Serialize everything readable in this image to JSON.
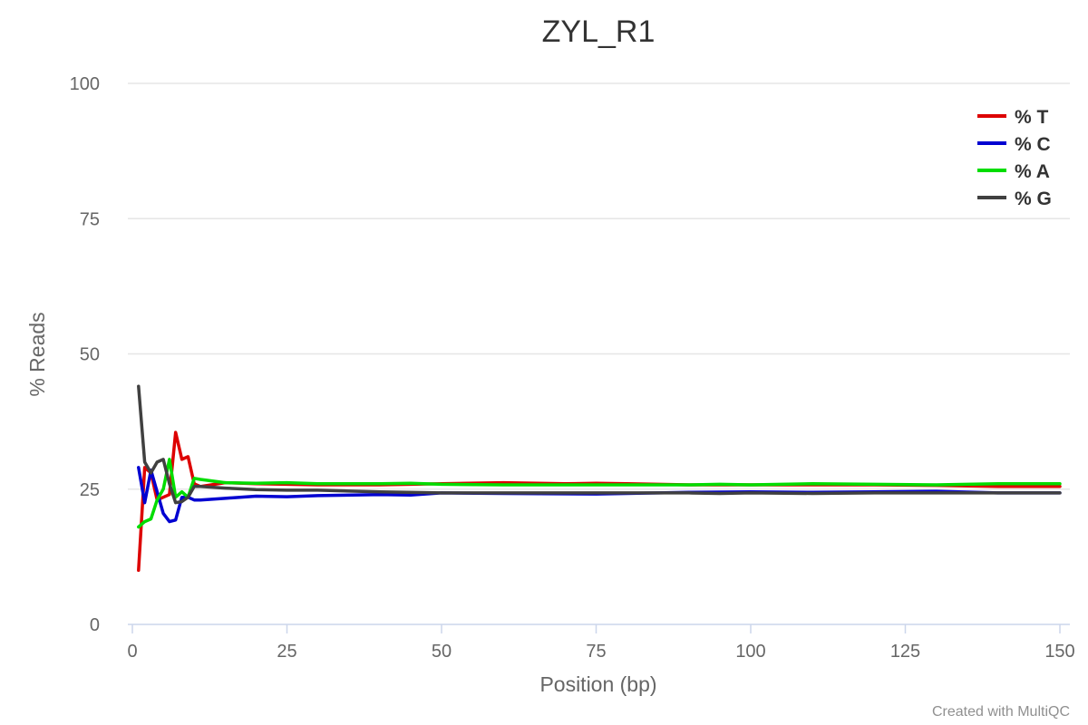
{
  "chart_data": {
    "type": "line",
    "title": "ZYL_R1",
    "xlabel": "Position (bp)",
    "ylabel": "% Reads",
    "xlim": [
      0,
      151
    ],
    "ylim": [
      0,
      100
    ],
    "x_ticks": [
      0,
      25,
      50,
      75,
      100,
      125,
      150
    ],
    "y_ticks": [
      0,
      25,
      50,
      75,
      100
    ],
    "grid": true,
    "legend_position": "top-right",
    "series": [
      {
        "name": "% T",
        "color": "#dd0000",
        "points": [
          [
            1,
            10
          ],
          [
            2,
            29
          ],
          [
            3,
            28
          ],
          [
            4,
            23
          ],
          [
            5,
            23.5
          ],
          [
            6,
            24
          ],
          [
            7,
            35.5
          ],
          [
            8,
            30.5
          ],
          [
            9,
            31
          ],
          [
            10,
            26
          ],
          [
            11,
            25.5
          ],
          [
            15,
            26.2
          ],
          [
            20,
            26
          ],
          [
            30,
            25.8
          ],
          [
            40,
            25.8
          ],
          [
            50,
            26
          ],
          [
            60,
            26.2
          ],
          [
            70,
            26
          ],
          [
            75,
            26.1
          ],
          [
            80,
            26
          ],
          [
            90,
            25.8
          ],
          [
            100,
            25.8
          ],
          [
            110,
            25.8
          ],
          [
            120,
            25.8
          ],
          [
            130,
            25.7
          ],
          [
            140,
            25.5
          ],
          [
            150,
            25.5
          ]
        ]
      },
      {
        "name": "% C",
        "color": "#0000d1",
        "points": [
          [
            1,
            29
          ],
          [
            2,
            22.5
          ],
          [
            3,
            28.5
          ],
          [
            4,
            24.5
          ],
          [
            5,
            20.5
          ],
          [
            6,
            19
          ],
          [
            7,
            19.3
          ],
          [
            8,
            23.5
          ],
          [
            9,
            23.5
          ],
          [
            10,
            23
          ],
          [
            11,
            23
          ],
          [
            15,
            23.3
          ],
          [
            20,
            23.7
          ],
          [
            25,
            23.6
          ],
          [
            30,
            23.8
          ],
          [
            40,
            24
          ],
          [
            45,
            23.9
          ],
          [
            50,
            24.3
          ],
          [
            60,
            24.2
          ],
          [
            75,
            24.1
          ],
          [
            90,
            24.4
          ],
          [
            100,
            24.5
          ],
          [
            110,
            24.4
          ],
          [
            120,
            24.5
          ],
          [
            130,
            24.6
          ],
          [
            140,
            24.3
          ],
          [
            150,
            24.3
          ]
        ]
      },
      {
        "name": "% A",
        "color": "#00dd00",
        "points": [
          [
            1,
            18
          ],
          [
            2,
            19
          ],
          [
            3,
            19.5
          ],
          [
            4,
            23
          ],
          [
            5,
            25
          ],
          [
            6,
            30.5
          ],
          [
            7,
            23.5
          ],
          [
            8,
            24.5
          ],
          [
            9,
            23.5
          ],
          [
            10,
            27
          ],
          [
            11,
            26.8
          ],
          [
            15,
            26.2
          ],
          [
            20,
            26.1
          ],
          [
            25,
            26.2
          ],
          [
            30,
            26
          ],
          [
            40,
            26
          ],
          [
            45,
            26.1
          ],
          [
            50,
            25.9
          ],
          [
            60,
            25.8
          ],
          [
            75,
            25.8
          ],
          [
            90,
            25.8
          ],
          [
            95,
            25.9
          ],
          [
            100,
            25.8
          ],
          [
            110,
            26
          ],
          [
            120,
            25.9
          ],
          [
            130,
            25.8
          ],
          [
            140,
            26
          ],
          [
            150,
            26
          ]
        ]
      },
      {
        "name": "% G",
        "color": "#404040",
        "points": [
          [
            1,
            44
          ],
          [
            2,
            30
          ],
          [
            3,
            28
          ],
          [
            4,
            30
          ],
          [
            5,
            30.5
          ],
          [
            6,
            26
          ],
          [
            7,
            22.5
          ],
          [
            8,
            22.7
          ],
          [
            9,
            23.5
          ],
          [
            10,
            25.5
          ],
          [
            11,
            25.5
          ],
          [
            15,
            25.2
          ],
          [
            20,
            24.9
          ],
          [
            25,
            24.8
          ],
          [
            30,
            24.8
          ],
          [
            40,
            24.5
          ],
          [
            50,
            24.3
          ],
          [
            60,
            24.3
          ],
          [
            75,
            24.3
          ],
          [
            90,
            24.3
          ],
          [
            95,
            24.2
          ],
          [
            100,
            24.3
          ],
          [
            110,
            24.2
          ],
          [
            120,
            24.3
          ],
          [
            130,
            24.3
          ],
          [
            140,
            24.3
          ],
          [
            150,
            24.3
          ]
        ]
      }
    ]
  },
  "credit": "Created with MultiQC"
}
